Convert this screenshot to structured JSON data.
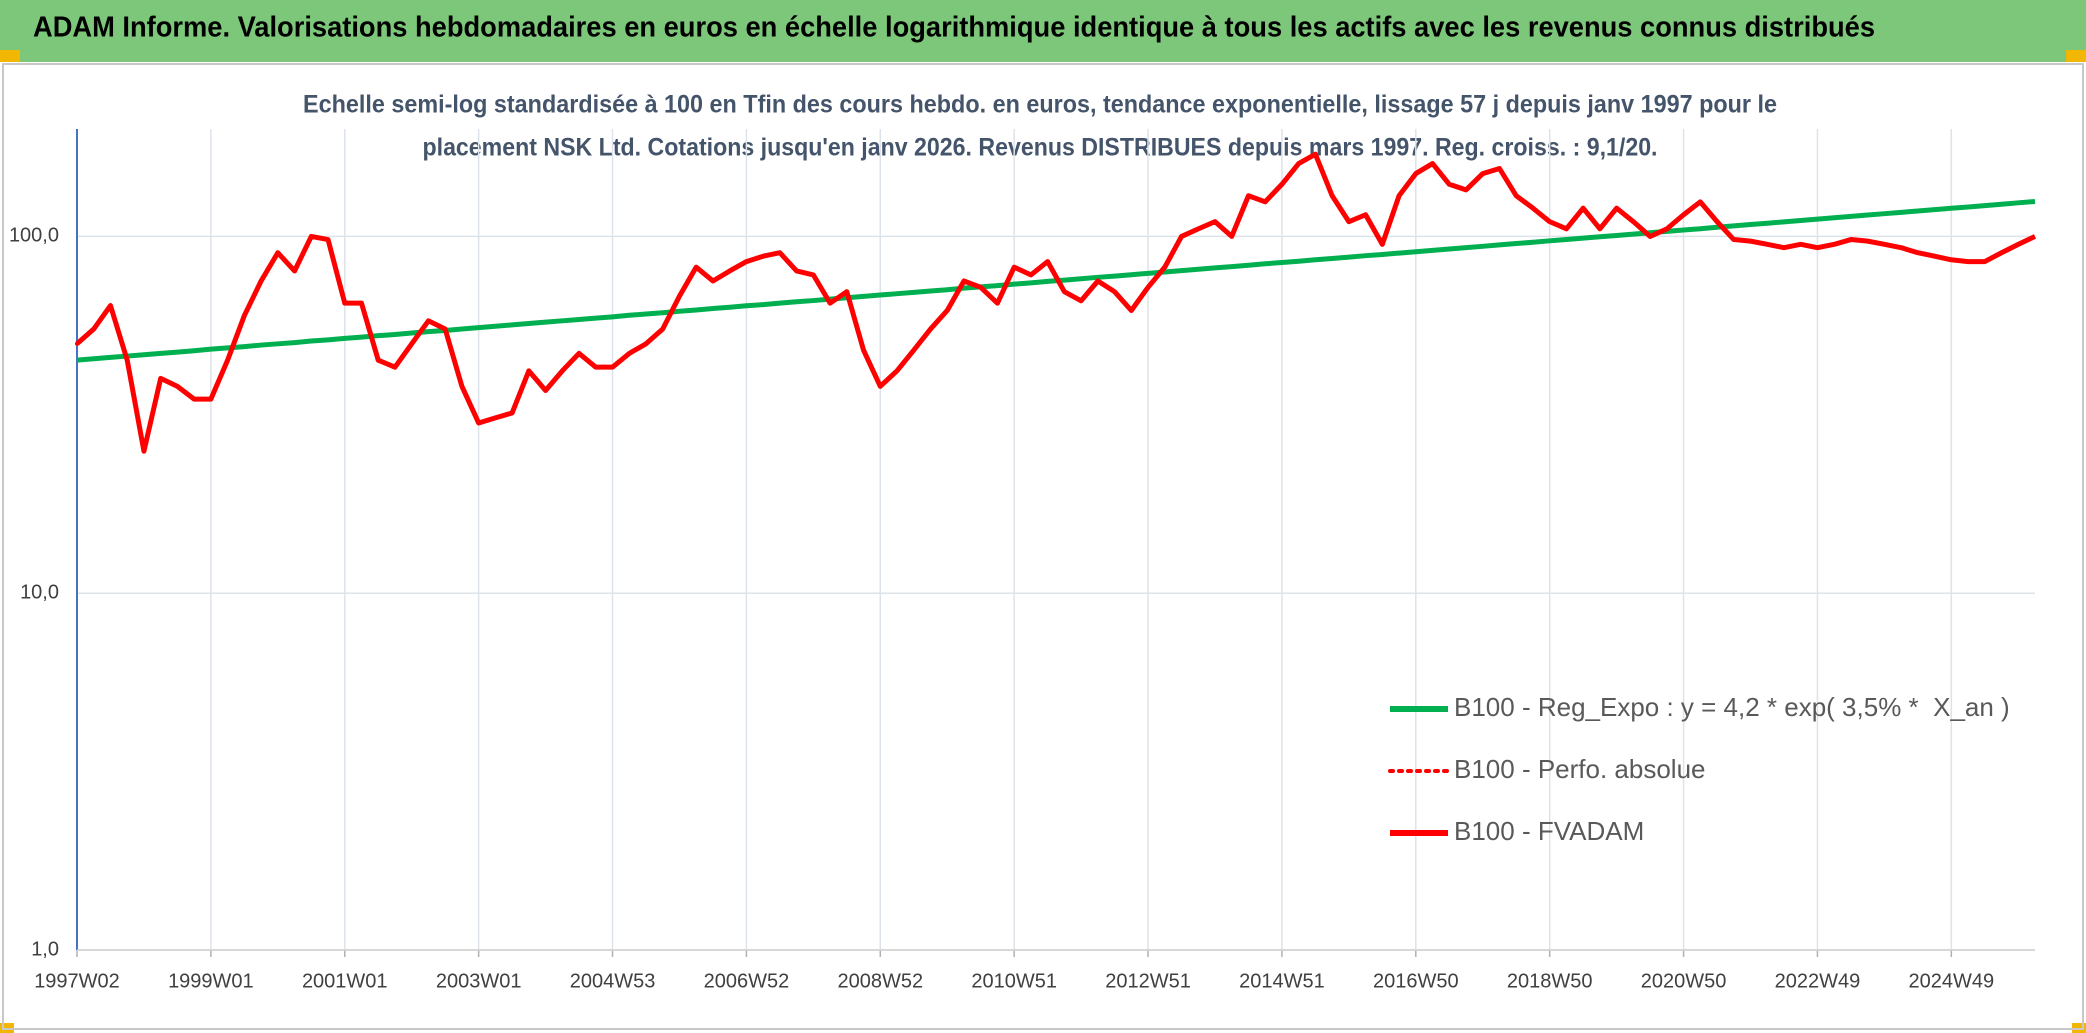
{
  "chart_data": {
    "type": "line",
    "title": "ADAM Informe. Valorisations hebdomadaires en euros en échelle logarithmique identique à tous les actifs avec les revenus connus distribués",
    "subtitle": [
      "Echelle semi-log standardisée à 100 en Tfin des cours hebdo. en euros, tendance exponentielle, lissage 57 j depuis janv 1997 pour le",
      "placement NSK Ltd. Cotations jusqu'en janv 2026. Revenus DISTRIBUES depuis mars 1997. Reg. croiss. : 9,1/20."
    ],
    "categories": [
      "1997W02",
      null,
      null,
      null,
      null,
      null,
      null,
      null,
      "1999W01",
      null,
      null,
      null,
      null,
      null,
      null,
      null,
      "2001W01",
      null,
      null,
      null,
      null,
      null,
      null,
      null,
      "2003W01",
      null,
      null,
      null,
      null,
      null,
      null,
      null,
      "2004W53",
      null,
      null,
      null,
      null,
      null,
      null,
      null,
      "2006W52",
      null,
      null,
      null,
      null,
      null,
      null,
      null,
      "2008W52",
      null,
      null,
      null,
      null,
      null,
      null,
      null,
      "2010W51",
      null,
      null,
      null,
      null,
      null,
      null,
      null,
      "2012W51",
      null,
      null,
      null,
      null,
      null,
      null,
      null,
      "2014W51",
      null,
      null,
      null,
      null,
      null,
      null,
      null,
      "2016W50",
      null,
      null,
      null,
      null,
      null,
      null,
      null,
      "2018W50",
      null,
      null,
      null,
      null,
      null,
      null,
      null,
      "2020W50",
      null,
      null,
      null,
      null,
      null,
      null,
      null,
      "2022W49",
      null,
      null,
      null,
      null,
      null,
      null,
      null,
      "2024W49",
      null,
      null,
      null,
      null,
      null
    ],
    "series": [
      {
        "name": "B100 - Reg_Expo : y = 4,2 * exp( 3,5% *  X_an )",
        "color": "#00b050",
        "dash": "solid",
        "values": [
          45.0,
          45.4,
          45.8,
          46.2,
          46.6,
          47.0,
          47.4,
          47.8,
          48.3,
          48.7,
          49.1,
          49.6,
          50.0,
          50.4,
          50.9,
          51.3,
          51.8,
          52.2,
          52.7,
          53.1,
          53.6,
          54.1,
          54.5,
          55.0,
          55.5,
          56.0,
          56.5,
          57.0,
          57.5,
          58.0,
          58.5,
          59.0,
          59.5,
          60.1,
          60.6,
          61.1,
          61.7,
          62.2,
          62.8,
          63.3,
          63.9,
          64.4,
          65.0,
          65.6,
          66.1,
          66.7,
          67.3,
          67.9,
          68.5,
          69.1,
          69.7,
          70.3,
          70.9,
          71.6,
          72.2,
          72.8,
          73.5,
          74.1,
          74.8,
          75.4,
          76.1,
          76.8,
          77.4,
          78.1,
          78.8,
          79.5,
          80.2,
          80.9,
          81.6,
          82.3,
          83.0,
          83.8,
          84.5,
          85.2,
          86.0,
          86.7,
          87.5,
          88.3,
          89.0,
          89.8,
          90.6,
          91.4,
          92.2,
          93.0,
          93.8,
          94.7,
          95.5,
          96.3,
          97.2,
          98.0,
          98.9,
          99.8,
          100.6,
          101.5,
          102.4,
          103.3,
          104.2,
          105.1,
          106.1,
          107.0,
          108.0,
          108.9,
          109.8,
          110.8,
          111.8,
          112.8,
          113.8,
          114.8,
          115.8,
          116.8,
          117.8,
          118.9,
          119.9,
          120.9,
          122.0,
          123.1,
          124.2,
          125.3
        ]
      },
      {
        "name": "B100 - Perfo. absolue",
        "color": "#ff0000",
        "dash": "dotted",
        "values": [
          50,
          55,
          64,
          45,
          25,
          40,
          38,
          35,
          35,
          45,
          60,
          75,
          90,
          80,
          100,
          98,
          65,
          65,
          45,
          43,
          50,
          58,
          55,
          38,
          30,
          31,
          32,
          42,
          37,
          42,
          47,
          43,
          43,
          47,
          50,
          55,
          68,
          82,
          75,
          80,
          85,
          88,
          90,
          80,
          78,
          65,
          70,
          48,
          38,
          42,
          48,
          55,
          62,
          75,
          72,
          65,
          82,
          78,
          85,
          70,
          66,
          75,
          70,
          62,
          72,
          82,
          100,
          105,
          110,
          100,
          130,
          125,
          140,
          160,
          170,
          130,
          110,
          115,
          95,
          130,
          150,
          160,
          140,
          135,
          150,
          155,
          130,
          120,
          110,
          105,
          120,
          105,
          120,
          110,
          100,
          105,
          115,
          125,
          110,
          98,
          97,
          95,
          93,
          95,
          93,
          95,
          98,
          97,
          95,
          93,
          90,
          88,
          86,
          85,
          85,
          90,
          95,
          100
        ]
      },
      {
        "name": "B100 - FVADAM",
        "color": "#ff0000",
        "dash": "solid",
        "values": [
          50,
          55,
          64,
          45,
          25,
          40,
          38,
          35,
          35,
          45,
          60,
          75,
          90,
          80,
          100,
          98,
          65,
          65,
          45,
          43,
          50,
          58,
          55,
          38,
          30,
          31,
          32,
          42,
          37,
          42,
          47,
          43,
          43,
          47,
          50,
          55,
          68,
          82,
          75,
          80,
          85,
          88,
          90,
          80,
          78,
          65,
          70,
          48,
          38,
          42,
          48,
          55,
          62,
          75,
          72,
          65,
          82,
          78,
          85,
          70,
          66,
          75,
          70,
          62,
          72,
          82,
          100,
          105,
          110,
          100,
          130,
          125,
          140,
          160,
          170,
          130,
          110,
          115,
          95,
          130,
          150,
          160,
          140,
          135,
          150,
          155,
          130,
          120,
          110,
          105,
          120,
          105,
          120,
          110,
          100,
          105,
          115,
          125,
          110,
          98,
          97,
          95,
          93,
          95,
          93,
          95,
          98,
          97,
          95,
          93,
          90,
          88,
          86,
          85,
          85,
          90,
          95,
          100
        ]
      }
    ],
    "ylim": [
      1,
      200
    ],
    "yticks": [
      {
        "value": 1,
        "label": "1,0"
      },
      {
        "value": 10,
        "label": "10,0"
      },
      {
        "value": 100,
        "label": "100,0"
      }
    ],
    "log_y": true,
    "grid": true,
    "legend": "lower right"
  }
}
